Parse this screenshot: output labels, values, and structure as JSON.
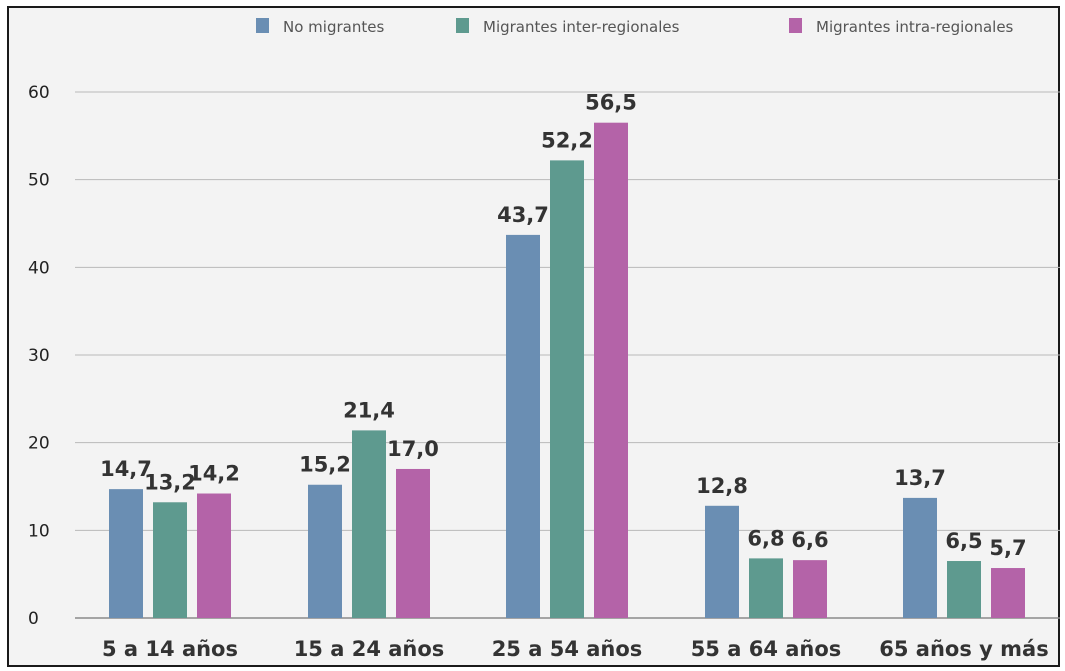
{
  "chart_data": {
    "type": "bar",
    "title": "",
    "xlabel": "",
    "ylabel": "",
    "categories": [
      "5 a 14 años",
      "15 a 24 años",
      "25 a 54 años",
      "55 a 64 años",
      "65 años y más"
    ],
    "series": [
      {
        "name": "No migrantes",
        "color": "#6a8eb3",
        "values": [
          14.7,
          15.2,
          43.7,
          12.8,
          13.7
        ],
        "labels": [
          "14,7",
          "15,2",
          "43,7",
          "12,8",
          "13,7"
        ]
      },
      {
        "name": "Migrantes inter-regionales",
        "color": "#5e9a8f",
        "values": [
          13.2,
          21.4,
          52.2,
          6.8,
          6.5
        ],
        "labels": [
          "13,2",
          "21,4",
          "52,2",
          "6,8",
          "6,5"
        ]
      },
      {
        "name": "Migrantes intra-regionales",
        "color": "#b463a8",
        "values": [
          14.2,
          17.0,
          56.5,
          6.6,
          5.7
        ],
        "labels": [
          "14,2",
          "17,0",
          "56,5",
          "6,6",
          "5,7"
        ]
      }
    ],
    "ylim": [
      0,
      60
    ],
    "yticks": [
      0,
      10,
      20,
      30,
      40,
      50,
      60
    ],
    "grid": true,
    "legend": "top"
  }
}
